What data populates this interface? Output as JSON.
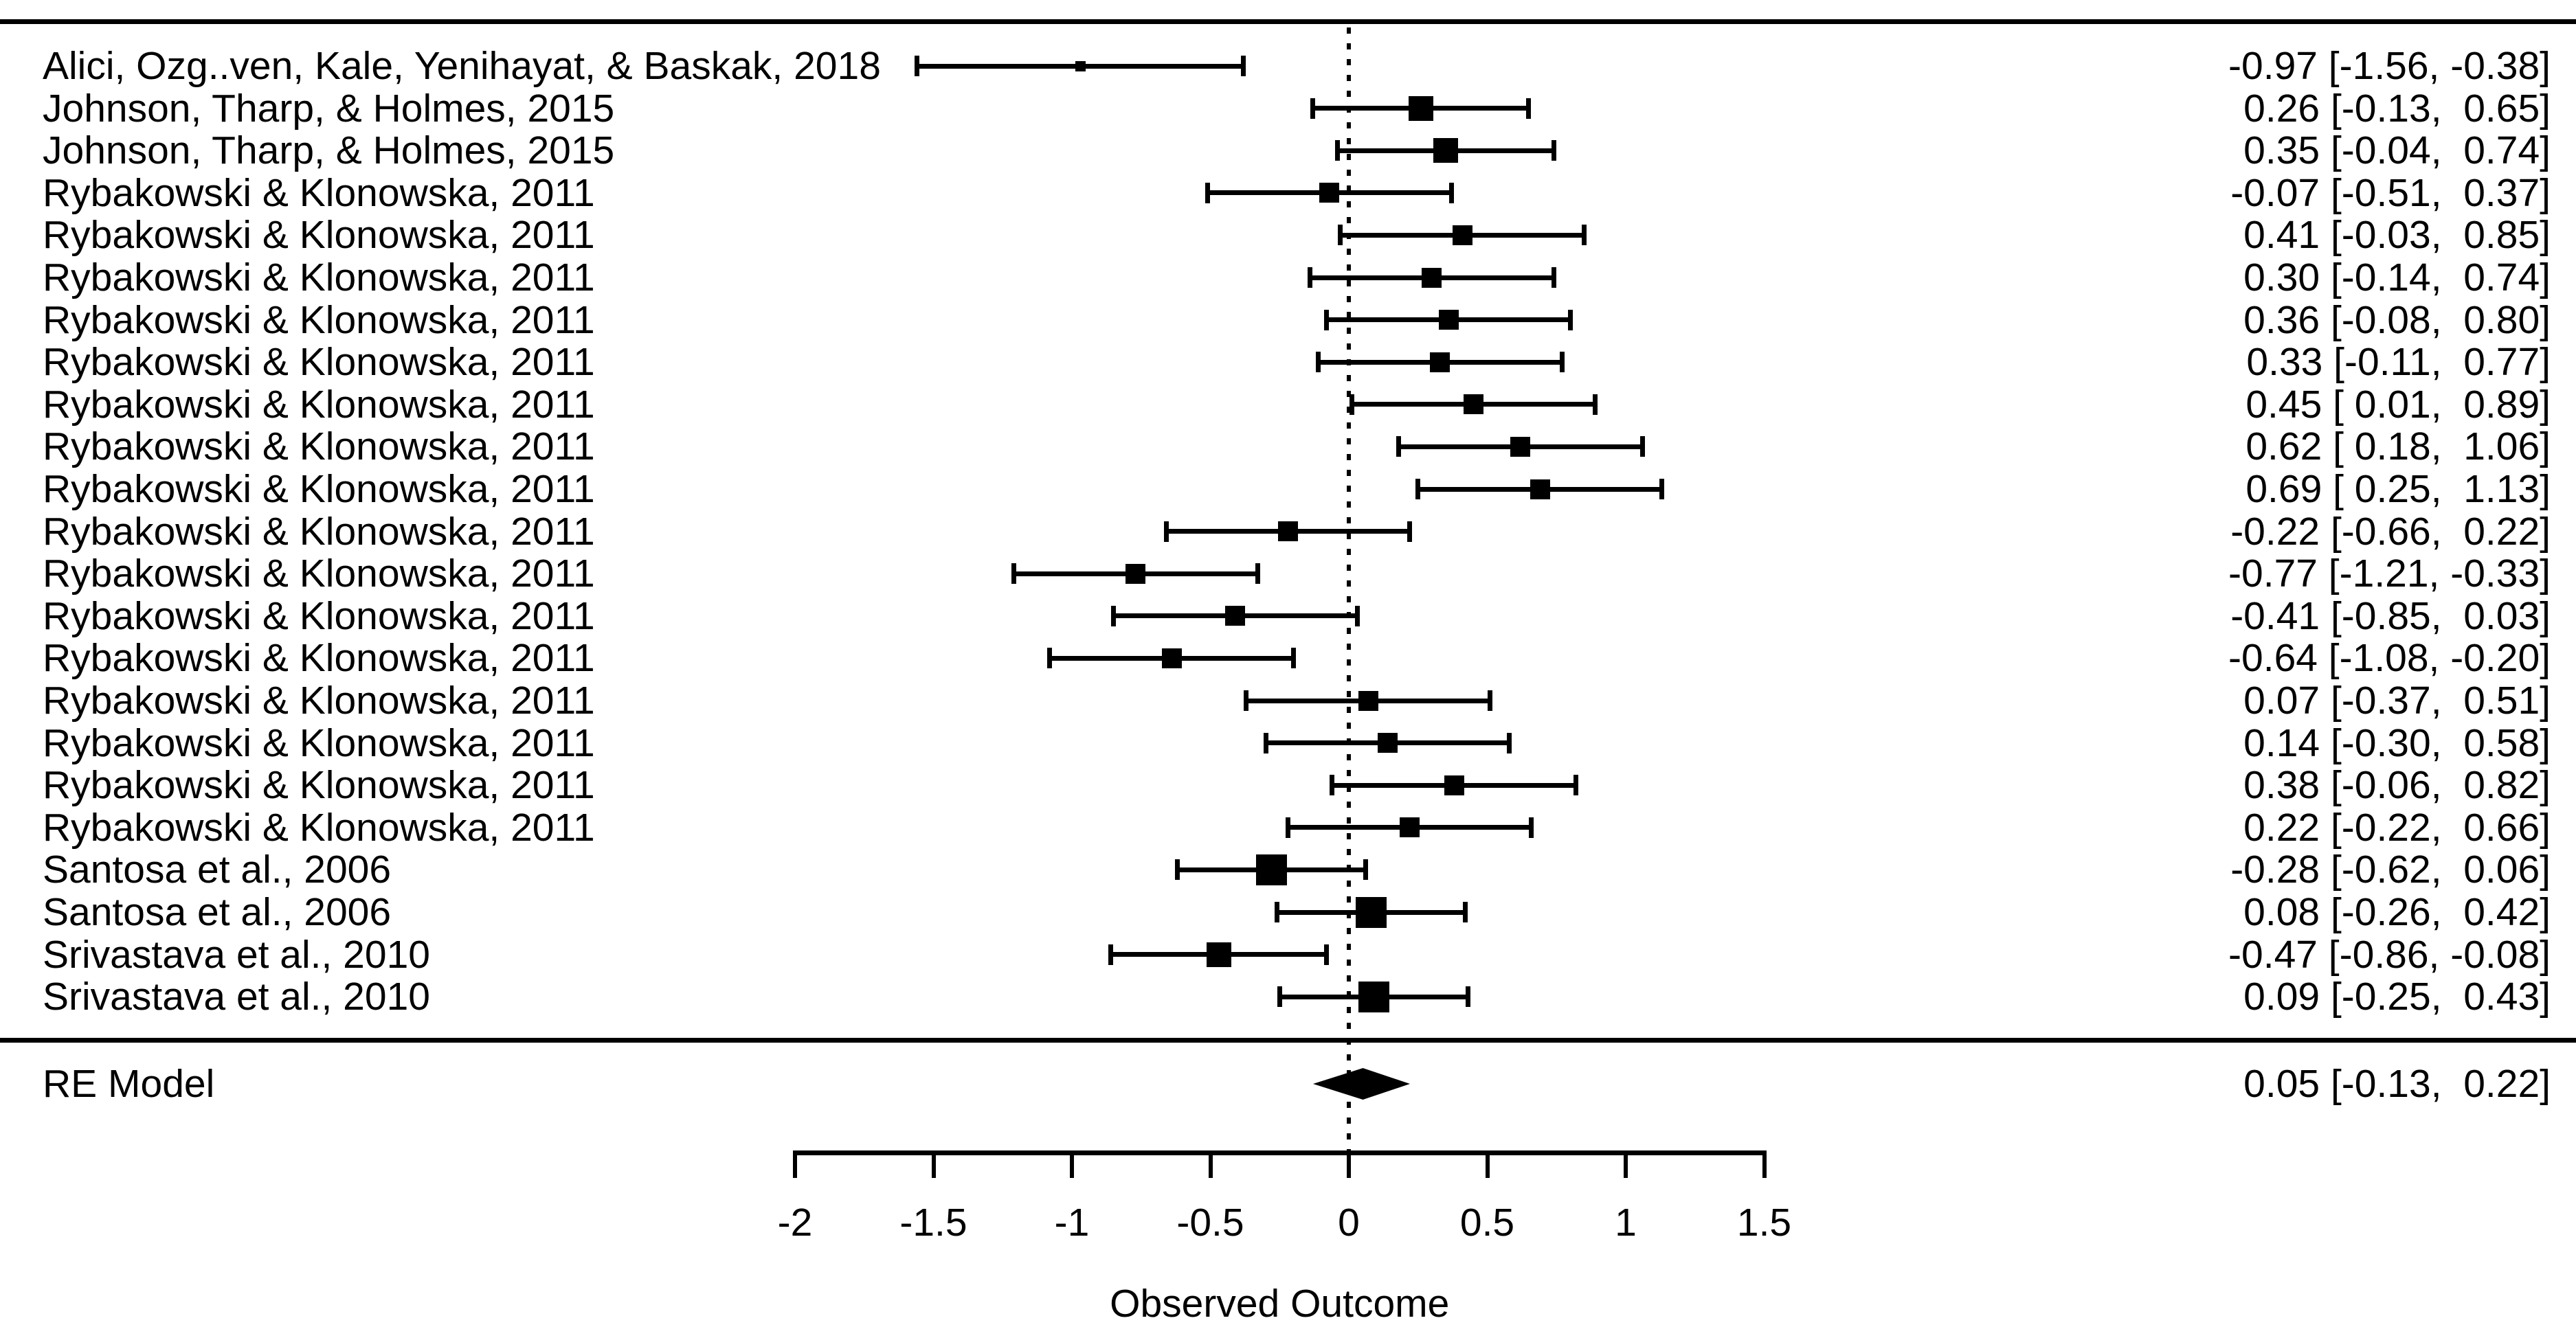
{
  "page": {
    "background_color": "#ffffff",
    "foreground_color": "#000000"
  },
  "chart_data": {
    "type": "forest",
    "title": "",
    "xlabel": "Observed Outcome",
    "xlim": [
      -2,
      1.5
    ],
    "x_tick_values": [
      -2,
      -1.5,
      -1,
      -0.5,
      0,
      0.5,
      1,
      1.5
    ],
    "x_tick_labels": [
      "-2",
      "-1.5",
      "-1",
      "-0.5",
      "0",
      "0.5",
      "1",
      "1.5"
    ],
    "reference_line": 0,
    "value_format": "est [lo, hi]",
    "studies": [
      {
        "label": "Alici, Ozg..ven, Kale, Yenihayat, & Baskak, 2018",
        "est": -0.97,
        "lo": -1.56,
        "hi": -0.38
      },
      {
        "label": "Johnson, Tharp, & Holmes, 2015",
        "est": 0.26,
        "lo": -0.13,
        "hi": 0.65
      },
      {
        "label": "Johnson, Tharp, & Holmes, 2015",
        "est": 0.35,
        "lo": -0.04,
        "hi": 0.74
      },
      {
        "label": "Rybakowski & Klonowska, 2011",
        "est": -0.07,
        "lo": -0.51,
        "hi": 0.37
      },
      {
        "label": "Rybakowski & Klonowska, 2011",
        "est": 0.41,
        "lo": -0.03,
        "hi": 0.85
      },
      {
        "label": "Rybakowski & Klonowska, 2011",
        "est": 0.3,
        "lo": -0.14,
        "hi": 0.74
      },
      {
        "label": "Rybakowski & Klonowska, 2011",
        "est": 0.36,
        "lo": -0.08,
        "hi": 0.8
      },
      {
        "label": "Rybakowski & Klonowska, 2011",
        "est": 0.33,
        "lo": -0.11,
        "hi": 0.77
      },
      {
        "label": "Rybakowski & Klonowska, 2011",
        "est": 0.45,
        "lo": 0.01,
        "hi": 0.89
      },
      {
        "label": "Rybakowski & Klonowska, 2011",
        "est": 0.62,
        "lo": 0.18,
        "hi": 1.06
      },
      {
        "label": "Rybakowski & Klonowska, 2011",
        "est": 0.69,
        "lo": 0.25,
        "hi": 1.13
      },
      {
        "label": "Rybakowski & Klonowska, 2011",
        "est": -0.22,
        "lo": -0.66,
        "hi": 0.22
      },
      {
        "label": "Rybakowski & Klonowska, 2011",
        "est": -0.77,
        "lo": -1.21,
        "hi": -0.33
      },
      {
        "label": "Rybakowski & Klonowska, 2011",
        "est": -0.41,
        "lo": -0.85,
        "hi": 0.03
      },
      {
        "label": "Rybakowski & Klonowska, 2011",
        "est": -0.64,
        "lo": -1.08,
        "hi": -0.2
      },
      {
        "label": "Rybakowski & Klonowska, 2011",
        "est": 0.07,
        "lo": -0.37,
        "hi": 0.51
      },
      {
        "label": "Rybakowski & Klonowska, 2011",
        "est": 0.14,
        "lo": -0.3,
        "hi": 0.58
      },
      {
        "label": "Rybakowski & Klonowska, 2011",
        "est": 0.38,
        "lo": -0.06,
        "hi": 0.82
      },
      {
        "label": "Rybakowski & Klonowska, 2011",
        "est": 0.22,
        "lo": -0.22,
        "hi": 0.66
      },
      {
        "label": "Santosa et al., 2006",
        "est": -0.28,
        "lo": -0.62,
        "hi": 0.06
      },
      {
        "label": "Santosa et al., 2006",
        "est": 0.08,
        "lo": -0.26,
        "hi": 0.42
      },
      {
        "label": "Srivastava et al., 2010",
        "est": -0.47,
        "lo": -0.86,
        "hi": -0.08
      },
      {
        "label": "Srivastava et al., 2010",
        "est": 0.09,
        "lo": -0.25,
        "hi": 0.43
      }
    ],
    "summary": {
      "label": "RE Model",
      "est": 0.05,
      "lo": -0.13,
      "hi": 0.22
    }
  }
}
